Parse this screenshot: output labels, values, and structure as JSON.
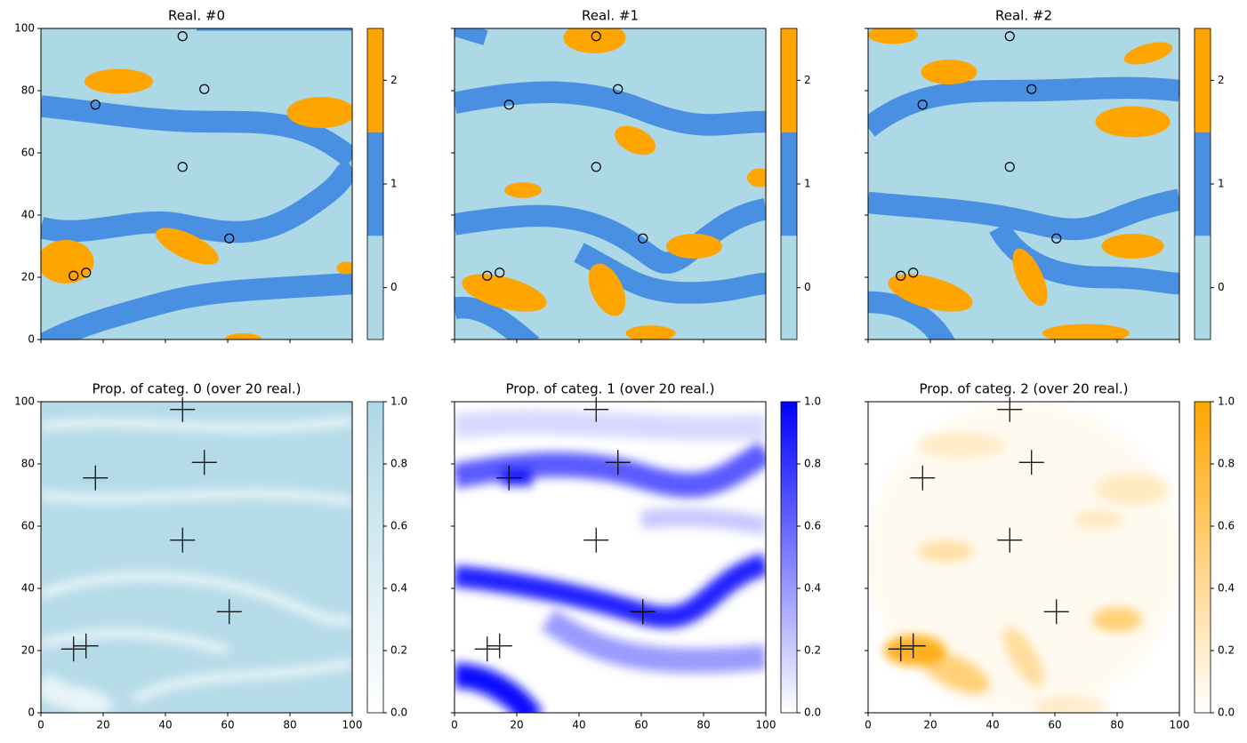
{
  "chart_data": [
    {
      "type": "scatter",
      "title": "Real. #0",
      "marker": "o",
      "xlim": [
        0,
        100
      ],
      "ylim": [
        0,
        100
      ],
      "xticks": [
        0,
        20,
        40,
        60,
        80,
        100
      ],
      "yticks": [
        0,
        20,
        40,
        60,
        80,
        100
      ],
      "show_xticklabels": false,
      "show_yticklabels": true,
      "x": [
        45.5,
        52.5,
        17.5,
        45.5,
        60.5,
        10.5,
        14.5
      ],
      "y": [
        97.5,
        80.5,
        75.5,
        55.5,
        32.5,
        20.5,
        21.5
      ],
      "cbar_lim": [
        -0.5,
        2.5
      ],
      "cbar_ticks": [
        0,
        1,
        2
      ],
      "cbar_colors": [
        "#add8e6",
        "#4a90e2",
        "#ffa500"
      ]
    },
    {
      "type": "scatter",
      "title": "Real. #1",
      "marker": "o",
      "xlim": [
        0,
        100
      ],
      "ylim": [
        0,
        100
      ],
      "xticks": [
        0,
        20,
        40,
        60,
        80,
        100
      ],
      "yticks": [
        0,
        20,
        40,
        60,
        80,
        100
      ],
      "show_xticklabels": false,
      "show_yticklabels": false,
      "x": [
        45.5,
        52.5,
        17.5,
        45.5,
        60.5,
        10.5,
        14.5
      ],
      "y": [
        97.5,
        80.5,
        75.5,
        55.5,
        32.5,
        20.5,
        21.5
      ],
      "cbar_lim": [
        -0.5,
        2.5
      ],
      "cbar_ticks": [
        0,
        1,
        2
      ],
      "cbar_colors": [
        "#add8e6",
        "#4a90e2",
        "#ffa500"
      ]
    },
    {
      "type": "scatter",
      "title": "Real. #2",
      "marker": "o",
      "xlim": [
        0,
        100
      ],
      "ylim": [
        0,
        100
      ],
      "xticks": [
        0,
        20,
        40,
        60,
        80,
        100
      ],
      "yticks": [
        0,
        20,
        40,
        60,
        80,
        100
      ],
      "show_xticklabels": false,
      "show_yticklabels": false,
      "x": [
        45.5,
        52.5,
        17.5,
        45.5,
        60.5,
        10.5,
        14.5
      ],
      "y": [
        97.5,
        80.5,
        75.5,
        55.5,
        32.5,
        20.5,
        21.5
      ],
      "cbar_lim": [
        -0.5,
        2.5
      ],
      "cbar_ticks": [
        0,
        1,
        2
      ],
      "cbar_colors": [
        "#add8e6",
        "#4a90e2",
        "#ffa500"
      ]
    },
    {
      "type": "scatter",
      "title": "Prop. of categ. 0 (over 20 real.)",
      "marker": "+",
      "xlim": [
        0,
        100
      ],
      "ylim": [
        0,
        100
      ],
      "xticks": [
        0,
        20,
        40,
        60,
        80,
        100
      ],
      "yticks": [
        0,
        20,
        40,
        60,
        80,
        100
      ],
      "show_xticklabels": true,
      "show_yticklabels": true,
      "x": [
        45.5,
        52.5,
        17.5,
        45.5,
        60.5,
        10.5,
        14.5
      ],
      "y": [
        97.5,
        80.5,
        75.5,
        55.5,
        32.5,
        20.5,
        21.5
      ],
      "cbar_lim": [
        0,
        1
      ],
      "cbar_ticks": [
        {
          "value": 0,
          "label": "0.0"
        },
        {
          "value": 0.2,
          "label": "0.2"
        },
        {
          "value": 0.4,
          "label": "0.4"
        },
        {
          "value": 0.6,
          "label": "0.6"
        },
        {
          "value": 0.8,
          "label": "0.8"
        },
        {
          "value": 1,
          "label": "1.0"
        }
      ],
      "cbar_colors": [
        "#ffffff",
        "#add8e6"
      ]
    },
    {
      "type": "scatter",
      "title": "Prop. of categ. 1 (over 20 real.)",
      "marker": "+",
      "xlim": [
        0,
        100
      ],
      "ylim": [
        0,
        100
      ],
      "xticks": [
        0,
        20,
        40,
        60,
        80,
        100
      ],
      "yticks": [
        0,
        20,
        40,
        60,
        80,
        100
      ],
      "show_xticklabels": true,
      "show_yticklabels": false,
      "x": [
        45.5,
        52.5,
        17.5,
        45.5,
        60.5,
        10.5,
        14.5
      ],
      "y": [
        97.5,
        80.5,
        75.5,
        55.5,
        32.5,
        20.5,
        21.5
      ],
      "cbar_lim": [
        0,
        1
      ],
      "cbar_ticks": [
        {
          "value": 0,
          "label": "0.0"
        },
        {
          "value": 0.2,
          "label": "0.2"
        },
        {
          "value": 0.4,
          "label": "0.4"
        },
        {
          "value": 0.6,
          "label": "0.6"
        },
        {
          "value": 0.8,
          "label": "0.8"
        },
        {
          "value": 1,
          "label": "1.0"
        }
      ],
      "cbar_colors": [
        "#ffffff",
        "#0000ff"
      ]
    },
    {
      "type": "scatter",
      "title": "Prop. of categ. 2 (over 20 real.)",
      "marker": "+",
      "xlim": [
        0,
        100
      ],
      "ylim": [
        0,
        100
      ],
      "xticks": [
        0,
        20,
        40,
        60,
        80,
        100
      ],
      "yticks": [
        0,
        20,
        40,
        60,
        80,
        100
      ],
      "show_xticklabels": true,
      "show_yticklabels": false,
      "x": [
        45.5,
        52.5,
        17.5,
        45.5,
        60.5,
        10.5,
        14.5
      ],
      "y": [
        97.5,
        80.5,
        75.5,
        55.5,
        32.5,
        20.5,
        21.5
      ],
      "cbar_lim": [
        0,
        1
      ],
      "cbar_ticks": [
        {
          "value": 0,
          "label": "0.0"
        },
        {
          "value": 0.2,
          "label": "0.2"
        },
        {
          "value": 0.4,
          "label": "0.4"
        },
        {
          "value": 0.6,
          "label": "0.6"
        },
        {
          "value": 0.8,
          "label": "0.8"
        },
        {
          "value": 1,
          "label": "1.0"
        }
      ],
      "cbar_colors": [
        "#ffffff",
        "#ffa500"
      ]
    }
  ]
}
